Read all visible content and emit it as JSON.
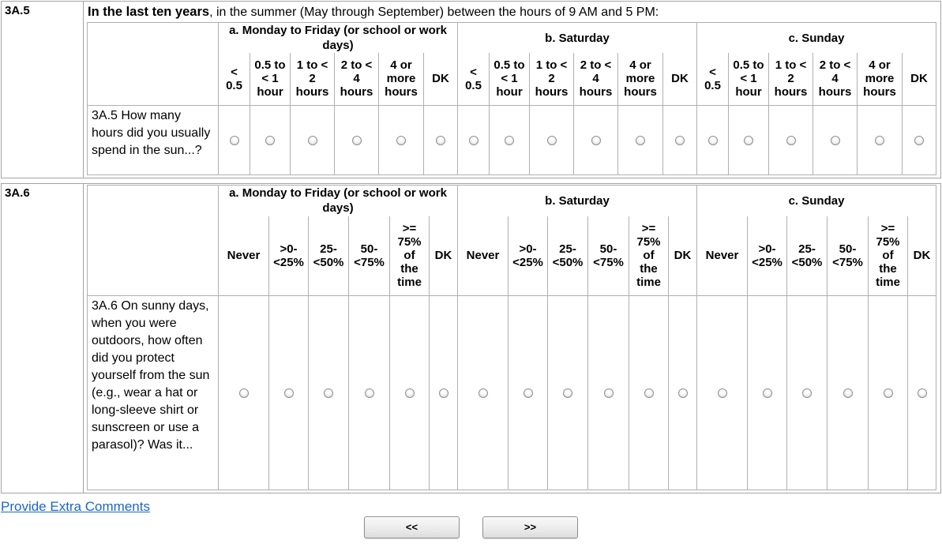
{
  "intro": {
    "bold": "In the last ten years",
    "rest": ", in the summer (May through September) between the hours of 9 AM and 5 PM:"
  },
  "sections": [
    {
      "code": "3A.5",
      "question": "3A.5 How many hours did you usually spend in the sun...?",
      "groups": [
        {
          "label": "a. Monday to Friday (or school or work days)"
        },
        {
          "label": "b. Saturday"
        },
        {
          "label": "c. Sunday"
        }
      ],
      "options": [
        "<\n0.5",
        "0.5 to\n< 1\nhour",
        "1 to <\n2\nhours",
        "2 to <\n4\nhours",
        "4 or\nmore\nhours",
        "DK"
      ]
    },
    {
      "code": "3A.6",
      "question": "3A.6 On sunny days, when you were outdoors, how often did you protect yourself from the sun (e.g., wear a hat or long-sleeve shirt or sunscreen or use a parasol)? Was it...",
      "groups": [
        {
          "label": "a. Monday to Friday (or school or work days)"
        },
        {
          "label": "b. Saturday"
        },
        {
          "label": "c. Sunday"
        }
      ],
      "options": [
        "Never",
        ">0-\n<25%",
        "25-\n<50%",
        "50-\n<75%",
        ">=\n75%\nof\nthe\ntime",
        "DK"
      ]
    }
  ],
  "radios": {
    "state": "unselected",
    "per_group": 6,
    "groups_per_question": 3
  },
  "footer": {
    "comments_link": "Provide Extra Comments",
    "back_button": "<<",
    "forward_button": ">>"
  },
  "colors": {
    "link_blue": "#1a66cc",
    "grid_border": "#b0b0b0",
    "text": "#000000"
  }
}
